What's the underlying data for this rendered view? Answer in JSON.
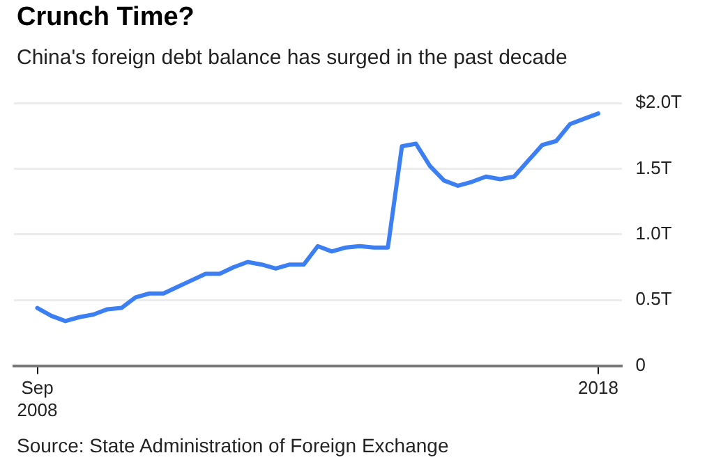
{
  "chart_data": {
    "type": "line",
    "title": "Crunch Time?",
    "subtitle": "China's foreign debt balance has surged in the past decade",
    "annotations": [
      "Source: State Administration of Foreign Exchange"
    ],
    "x": [
      "2008-09",
      "2008-12",
      "2009-03",
      "2009-06",
      "2009-09",
      "2009-12",
      "2010-03",
      "2010-06",
      "2010-09",
      "2010-12",
      "2011-03",
      "2011-06",
      "2011-09",
      "2011-12",
      "2012-03",
      "2012-06",
      "2012-09",
      "2012-12",
      "2013-03",
      "2013-06",
      "2013-09",
      "2013-12",
      "2014-03",
      "2014-06",
      "2014-09",
      "2014-12",
      "2015-03",
      "2015-06",
      "2015-09",
      "2015-12",
      "2016-03",
      "2016-06",
      "2016-09",
      "2016-12",
      "2017-03",
      "2017-06",
      "2017-09",
      "2017-12",
      "2018-03",
      "2018-06",
      "2018-09"
    ],
    "series": [
      {
        "color": "#3b7ff2",
        "values": [
          0.44,
          0.38,
          0.34,
          0.37,
          0.39,
          0.43,
          0.44,
          0.52,
          0.55,
          0.55,
          0.6,
          0.65,
          0.7,
          0.7,
          0.75,
          0.79,
          0.77,
          0.74,
          0.77,
          0.77,
          0.91,
          0.87,
          0.9,
          0.91,
          0.9,
          0.9,
          1.67,
          1.69,
          1.52,
          1.41,
          1.37,
          1.4,
          1.44,
          1.42,
          1.44,
          1.56,
          1.68,
          1.71,
          1.84,
          1.88,
          1.92
        ]
      }
    ],
    "xlim": [
      "2008-04",
      "2019-02"
    ],
    "xticks": [
      {
        "value": "2008-09",
        "label": "Sep\n2008"
      },
      {
        "value": "2018-09",
        "label": "2018"
      }
    ],
    "ylim": [
      0,
      2
    ],
    "yticks": [
      0,
      {
        "value": 0.5,
        "label": "0.5T"
      },
      {
        "value": 1,
        "label": "1.0T"
      },
      {
        "value": 1.5,
        "label": "1.5T"
      },
      {
        "value": 2,
        "label": "$2.0T"
      }
    ],
    "grid": "y",
    "legend": false,
    "marker": "none",
    "line_style": "solid"
  }
}
